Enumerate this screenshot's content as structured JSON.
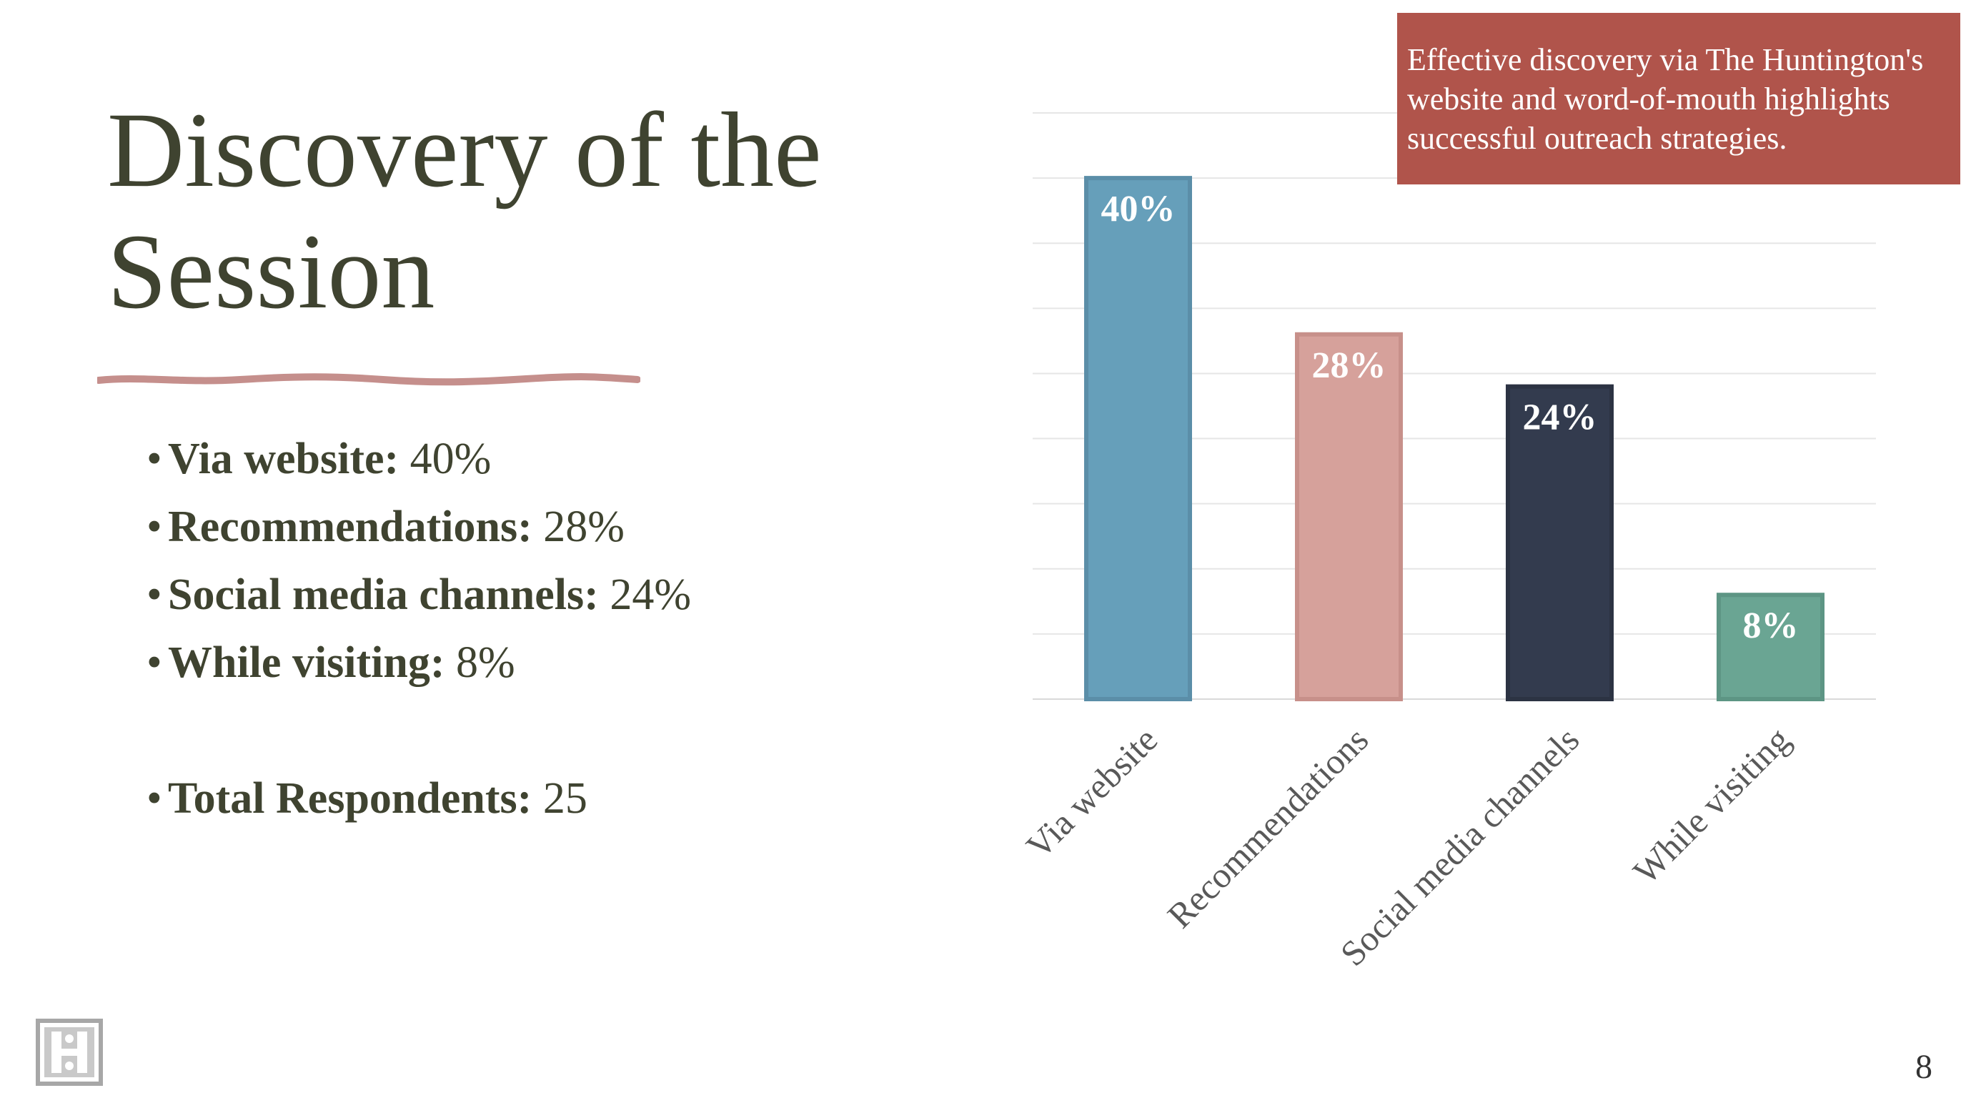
{
  "slide": {
    "title_line1": "Discovery of the",
    "title_line2": "Session",
    "page_number": "8"
  },
  "bullets": [
    {
      "label": "Via website:",
      "value": " 40%"
    },
    {
      "label": "Recommendations:",
      "value": " 28%"
    },
    {
      "label": "Social media channels:",
      "value": " 24%"
    },
    {
      "label": "While visiting:",
      "value": " 8%"
    },
    {
      "label": "Total Respondents:",
      "value": " 25"
    }
  ],
  "callout": {
    "text": "Effective discovery via The Huntington's website and word-of-mouth highlights successful outreach strategies."
  },
  "icons": {
    "logo": "huntington-h-logo-icon"
  },
  "colors": {
    "title": "#3f4330",
    "callout_bg": "#b0544b",
    "underline": "#c58f8c"
  },
  "chart_data": {
    "type": "bar",
    "categories": [
      "Via website",
      "Recommendations",
      "Social media channels",
      "While visiting"
    ],
    "values": [
      40,
      28,
      24,
      8
    ],
    "data_labels": [
      "40%",
      "28%",
      "24%",
      "8%"
    ],
    "colors": [
      "#669fba",
      "#d6a19b",
      "#333b4e",
      "#6aa593"
    ],
    "border_colors": [
      "#5b8ea8",
      "#c7908a",
      "#2c3343",
      "#5d9584"
    ],
    "ylim": [
      0,
      45
    ],
    "grid": true,
    "legend": "none",
    "title": "",
    "xlabel": "",
    "ylabel": ""
  }
}
